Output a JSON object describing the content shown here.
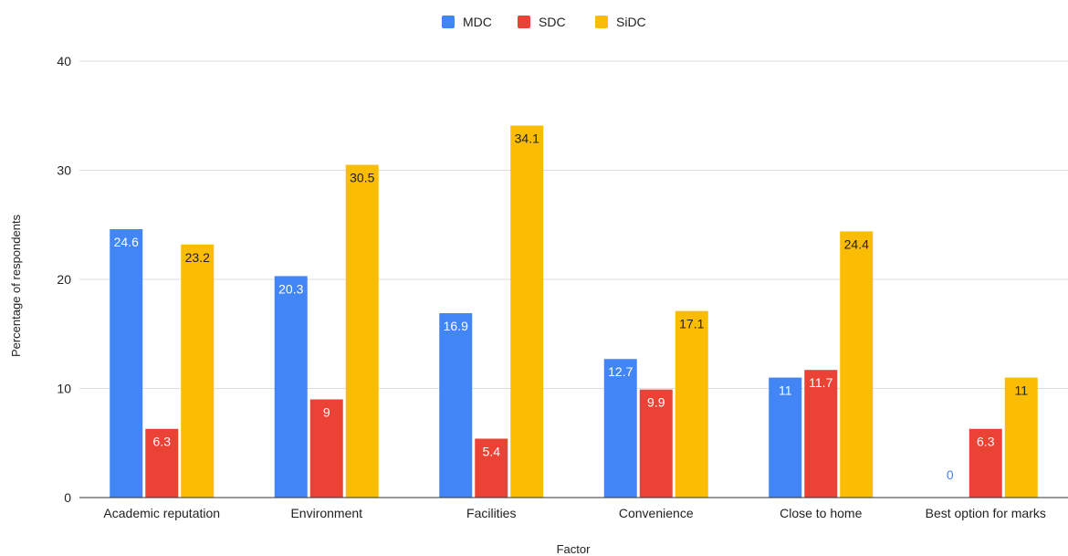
{
  "chart_data": {
    "type": "bar",
    "categories": [
      "Academic reputation",
      "Environment",
      "Facilities",
      "Convenience",
      "Close to home",
      "Best option for marks"
    ],
    "series": [
      {
        "name": "MDC",
        "color": "#4285f4",
        "label_color": "#ffffff",
        "values": [
          24.6,
          20.3,
          16.9,
          12.7,
          11,
          0
        ]
      },
      {
        "name": "SDC",
        "color": "#ea4335",
        "label_color": "#ffffff",
        "values": [
          6.3,
          9,
          5.4,
          9.9,
          11.7,
          6.3
        ]
      },
      {
        "name": "SiDC",
        "color": "#fbbc04",
        "label_color": "#222222",
        "values": [
          23.2,
          30.5,
          34.1,
          17.1,
          24.4,
          11
        ]
      }
    ],
    "zero_label_color": "#4285f4",
    "xlabel": "Factor",
    "ylabel": "Percentage of respondents",
    "ylim": [
      0,
      40
    ],
    "yticks": [
      0,
      10,
      20,
      30,
      40
    ],
    "grid": true,
    "legend_position": "top"
  }
}
